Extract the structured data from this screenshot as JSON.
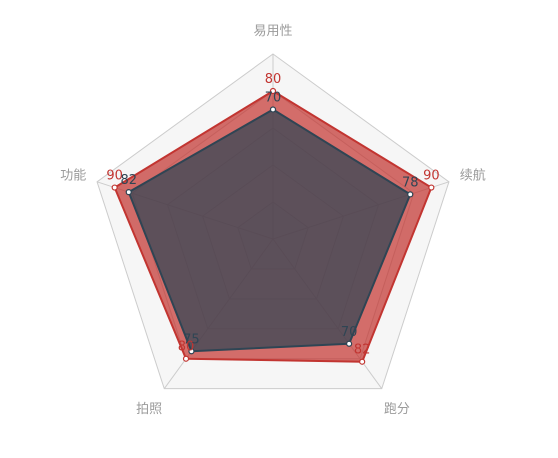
{
  "chart_data": {
    "type": "radar",
    "indicators": [
      "易用性",
      "续航",
      "跑分",
      "拍照",
      "功能"
    ],
    "max": 100,
    "series": [
      {
        "values": [
          80,
          90,
          82,
          80,
          90
        ],
        "line_color": "#c23531",
        "area_color": "#c23531",
        "label_color": "#c23531"
      },
      {
        "values": [
          70,
          78,
          70,
          75,
          82
        ],
        "line_color": "#2f4554",
        "area_color": "#2f4554",
        "label_color": "#2f4554"
      }
    ],
    "grid_color": "#cccccc",
    "split_area_colors": [
      "#fdfdfd",
      "#f6f6f6"
    ]
  }
}
